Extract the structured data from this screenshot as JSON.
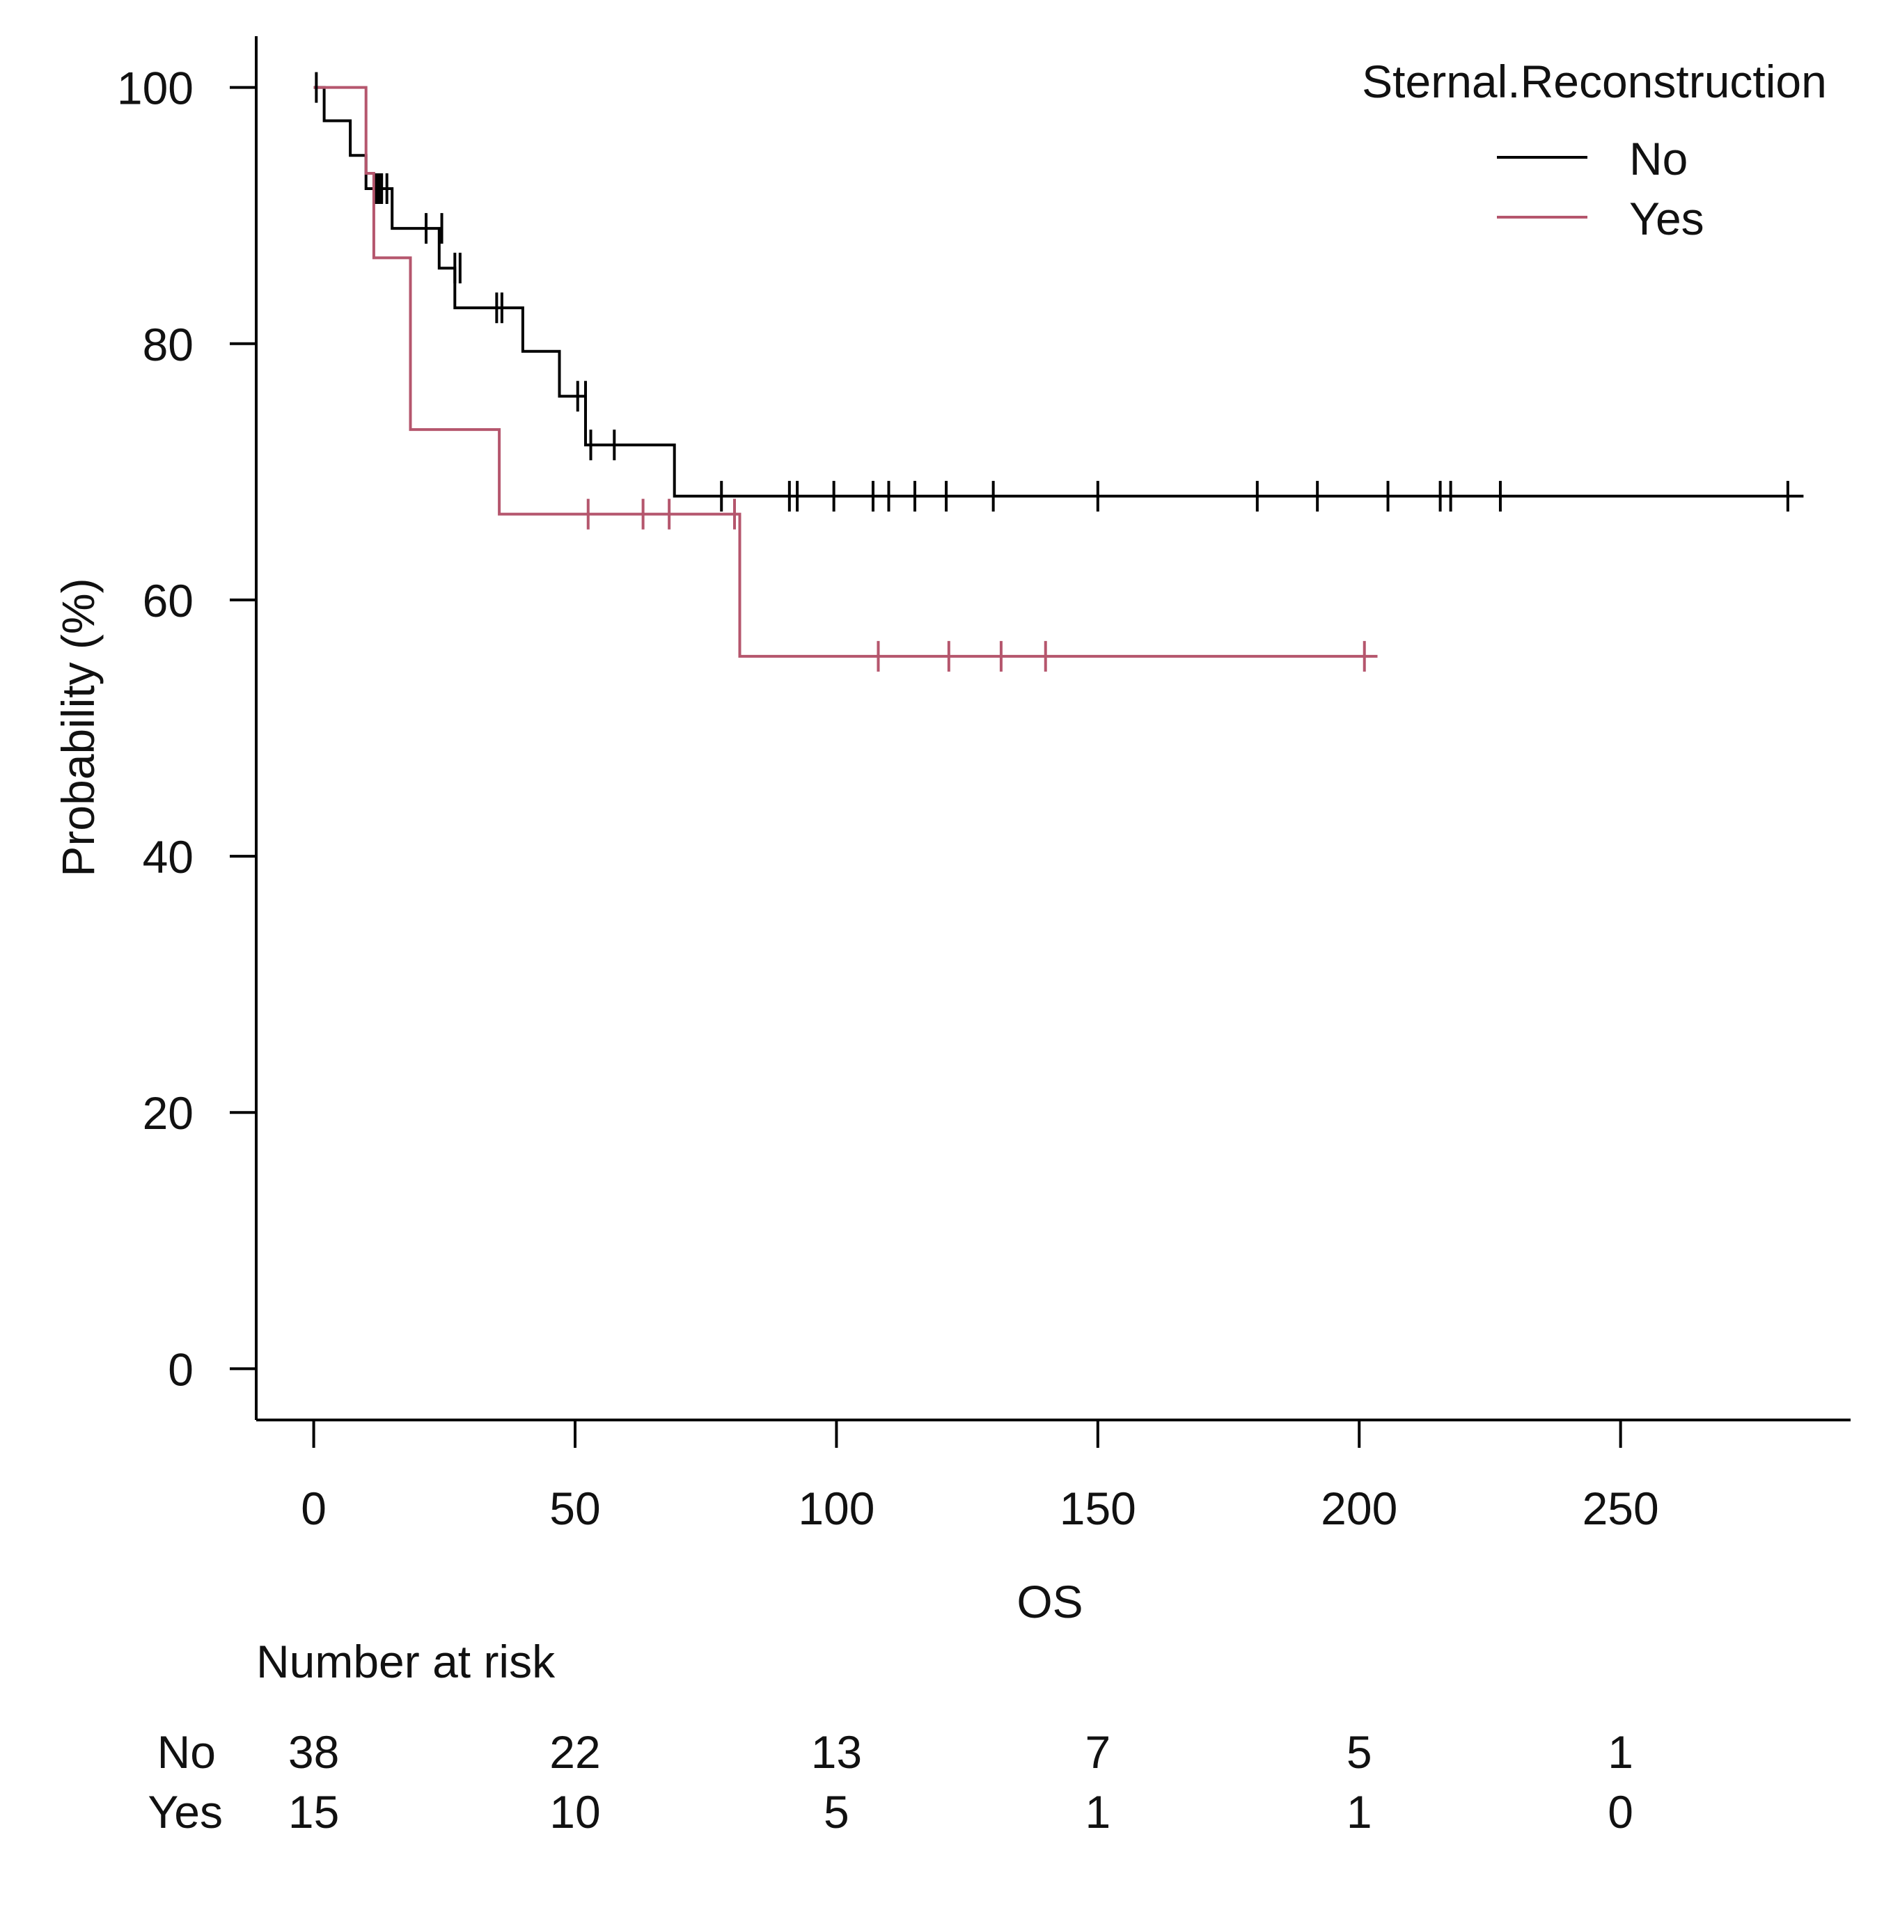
{
  "chart_data": {
    "type": "line",
    "subtype": "kaplan-meier",
    "xlabel": "OS",
    "ylabel": "Probability (%)",
    "xlim": [
      -11,
      294
    ],
    "ylim": [
      -4,
      104
    ],
    "xticks": [
      0,
      50,
      100,
      150,
      200,
      250
    ],
    "yticks": [
      0,
      20,
      40,
      60,
      80,
      100
    ],
    "legend": {
      "title": "Sternal.Reconstruction",
      "position": "top-right"
    },
    "series": [
      {
        "name": "No",
        "color": "#000000",
        "steps": [
          [
            0,
            100
          ],
          [
            2,
            100
          ],
          [
            2,
            97.4
          ],
          [
            7,
            97.4
          ],
          [
            7,
            94.7
          ],
          [
            10,
            94.7
          ],
          [
            10,
            92.1
          ],
          [
            15,
            92.1
          ],
          [
            15,
            89.0
          ],
          [
            24,
            89.0
          ],
          [
            24,
            85.9
          ],
          [
            27,
            85.9
          ],
          [
            27,
            82.8
          ],
          [
            40,
            82.8
          ],
          [
            40,
            79.4
          ],
          [
            47,
            79.4
          ],
          [
            47,
            75.9
          ],
          [
            52,
            75.9
          ],
          [
            52,
            72.1
          ],
          [
            69,
            72.1
          ],
          [
            69,
            68.1
          ],
          [
            285,
            68.1
          ]
        ],
        "censor_times": [
          0.5,
          12,
          12.5,
          13,
          14,
          21.5,
          24.5,
          27,
          28,
          35,
          36,
          50.5,
          52,
          53,
          57.5,
          78,
          91,
          92.5,
          99.5,
          107,
          110,
          115,
          121,
          130,
          150,
          180.5,
          192,
          205.5,
          215.5,
          217.5,
          227,
          282
        ],
        "censor_values": [
          100,
          92.1,
          92.1,
          92.1,
          92.1,
          89.0,
          89.0,
          85.9,
          85.9,
          82.8,
          82.8,
          75.9,
          75.9,
          72.1,
          72.1,
          68.1,
          68.1,
          68.1,
          68.1,
          68.1,
          68.1,
          68.1,
          68.1,
          68.1,
          68.1,
          68.1,
          68.1,
          68.1,
          68.1,
          68.1,
          68.1,
          68.1
        ]
      },
      {
        "name": "Yes",
        "color": "#b5566d",
        "steps": [
          [
            0,
            100
          ],
          [
            10,
            100
          ],
          [
            10,
            93.3
          ],
          [
            11.5,
            93.3
          ],
          [
            11.5,
            86.7
          ],
          [
            18.5,
            86.7
          ],
          [
            18.5,
            73.3
          ],
          [
            35.5,
            73.3
          ],
          [
            35.5,
            66.7
          ],
          [
            81.5,
            66.7
          ],
          [
            81.5,
            55.6
          ],
          [
            203.5,
            55.6
          ]
        ],
        "censor_times": [
          52.5,
          63,
          68,
          80.5,
          108,
          121.5,
          131.5,
          140,
          201
        ],
        "censor_values": [
          66.7,
          66.7,
          66.7,
          66.7,
          55.6,
          55.6,
          55.6,
          55.6,
          55.6
        ]
      }
    ],
    "risk_table": {
      "title": "Number at risk",
      "times": [
        0,
        50,
        100,
        150,
        200,
        250
      ],
      "rows": [
        {
          "label": "No",
          "counts": [
            "38",
            "22",
            "13",
            "7",
            "5",
            "1"
          ]
        },
        {
          "label": "Yes",
          "counts": [
            "15",
            "10",
            "5",
            "1",
            "1",
            "0"
          ]
        }
      ]
    }
  }
}
